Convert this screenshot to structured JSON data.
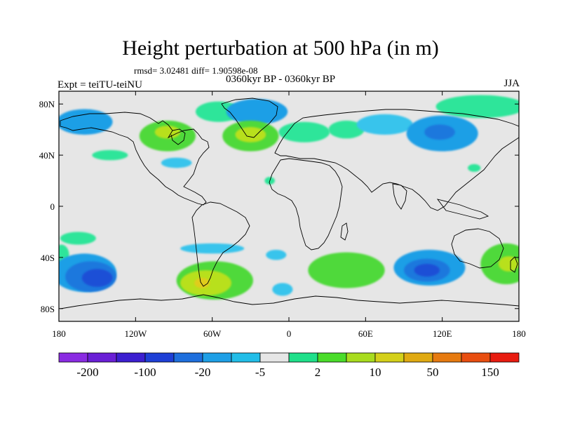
{
  "title": "Height perturbation at 500 hPa (in m)",
  "stats": "rmsd= 3.02481 diff= 1.90598e-08",
  "experiment": "Expt = teiTU-teiNU",
  "period": "0360kyr BP - 0360kyr BP",
  "season": "JJA",
  "map": {
    "lat_range": [
      -90,
      90
    ],
    "lon_range": [
      -180,
      180
    ],
    "background_color": "#e6e6e6",
    "lat_ticks": [
      {
        "value": 80,
        "label": "80N"
      },
      {
        "value": 40,
        "label": "40N"
      },
      {
        "value": 0,
        "label": "0"
      },
      {
        "value": -40,
        "label": "40S"
      },
      {
        "value": -80,
        "label": "80S"
      }
    ],
    "lon_ticks": [
      {
        "value": -180,
        "label": "180"
      },
      {
        "value": -120,
        "label": "120W"
      },
      {
        "value": -60,
        "label": "60W"
      },
      {
        "value": 0,
        "label": "0"
      },
      {
        "value": 60,
        "label": "60E"
      },
      {
        "value": 120,
        "label": "120E"
      },
      {
        "value": 180,
        "label": "180"
      }
    ],
    "anomalies": [
      {
        "lon": -160,
        "lat": 66,
        "rlon": 22,
        "rlat": 10,
        "level": 1,
        "sign": "neg"
      },
      {
        "lon": -140,
        "lat": 40,
        "rlon": 14,
        "rlat": 4,
        "level": 0,
        "sign": "pos"
      },
      {
        "lon": -95,
        "lat": 55,
        "rlon": 22,
        "rlat": 12,
        "level": 1,
        "sign": "pos"
      },
      {
        "lon": -95,
        "lat": 58,
        "rlon": 10,
        "rlat": 5,
        "level": 2,
        "sign": "pos"
      },
      {
        "lon": -88,
        "lat": 34,
        "rlon": 12,
        "rlat": 4,
        "level": 0,
        "sign": "neg"
      },
      {
        "lon": -55,
        "lat": 74,
        "rlon": 18,
        "rlat": 8,
        "level": 0,
        "sign": "pos"
      },
      {
        "lon": -25,
        "lat": 74,
        "rlon": 24,
        "rlat": 10,
        "level": 1,
        "sign": "neg"
      },
      {
        "lon": -30,
        "lat": 55,
        "rlon": 22,
        "rlat": 12,
        "level": 1,
        "sign": "pos"
      },
      {
        "lon": -30,
        "lat": 56,
        "rlon": 12,
        "rlat": 6,
        "level": 2,
        "sign": "pos"
      },
      {
        "lon": 12,
        "lat": 58,
        "rlon": 20,
        "rlat": 8,
        "level": 0,
        "sign": "pos"
      },
      {
        "lon": 45,
        "lat": 60,
        "rlon": 14,
        "rlat": 7,
        "level": 0,
        "sign": "pos"
      },
      {
        "lon": 75,
        "lat": 64,
        "rlon": 22,
        "rlat": 8,
        "level": 0,
        "sign": "neg"
      },
      {
        "lon": 120,
        "lat": 57,
        "rlon": 28,
        "rlat": 14,
        "level": 1,
        "sign": "neg"
      },
      {
        "lon": 118,
        "lat": 58,
        "rlon": 12,
        "rlat": 6,
        "level": 2,
        "sign": "neg"
      },
      {
        "lon": 150,
        "lat": 78,
        "rlon": 35,
        "rlat": 9,
        "level": 0,
        "sign": "pos"
      },
      {
        "lon": -15,
        "lat": 20,
        "rlon": 4,
        "rlat": 3,
        "level": 0,
        "sign": "pos"
      },
      {
        "lon": 145,
        "lat": 30,
        "rlon": 5,
        "rlat": 3,
        "level": 0,
        "sign": "pos"
      },
      {
        "lon": -160,
        "lat": -52,
        "rlon": 25,
        "rlat": 15,
        "level": 1,
        "sign": "neg"
      },
      {
        "lon": -155,
        "lat": -55,
        "rlon": 20,
        "rlat": 12,
        "level": 2,
        "sign": "neg"
      },
      {
        "lon": -150,
        "lat": -56,
        "rlon": 12,
        "rlat": 7,
        "level": 3,
        "sign": "neg"
      },
      {
        "lon": -165,
        "lat": -25,
        "rlon": 14,
        "rlat": 5,
        "level": 0,
        "sign": "pos"
      },
      {
        "lon": -178,
        "lat": -38,
        "rlon": 6,
        "rlat": 8,
        "level": 0,
        "sign": "pos"
      },
      {
        "lon": -58,
        "lat": -58,
        "rlon": 30,
        "rlat": 15,
        "level": 1,
        "sign": "pos"
      },
      {
        "lon": -65,
        "lat": -60,
        "rlon": 20,
        "rlat": 10,
        "level": 2,
        "sign": "pos"
      },
      {
        "lon": -68,
        "lat": -60,
        "rlon": 6,
        "rlat": 4,
        "level": 3,
        "sign": "pos"
      },
      {
        "lon": -60,
        "lat": -33,
        "rlon": 25,
        "rlat": 4,
        "level": 0,
        "sign": "neg"
      },
      {
        "lon": -10,
        "lat": -38,
        "rlon": 8,
        "rlat": 4,
        "level": 0,
        "sign": "neg"
      },
      {
        "lon": -5,
        "lat": -65,
        "rlon": 8,
        "rlat": 5,
        "level": 0,
        "sign": "neg"
      },
      {
        "lon": 45,
        "lat": -50,
        "rlon": 30,
        "rlat": 14,
        "level": 1,
        "sign": "pos"
      },
      {
        "lon": 110,
        "lat": -48,
        "rlon": 28,
        "rlat": 14,
        "level": 1,
        "sign": "neg"
      },
      {
        "lon": 108,
        "lat": -50,
        "rlon": 18,
        "rlat": 9,
        "level": 2,
        "sign": "neg"
      },
      {
        "lon": 108,
        "lat": -50,
        "rlon": 10,
        "rlat": 5,
        "level": 3,
        "sign": "neg"
      },
      {
        "lon": 170,
        "lat": -45,
        "rlon": 20,
        "rlat": 16,
        "level": 1,
        "sign": "pos"
      },
      {
        "lon": 172,
        "lat": -45,
        "rlon": 8,
        "rlat": 6,
        "level": 2,
        "sign": "pos"
      }
    ]
  },
  "colorbar": {
    "colors": [
      "#8a2be2",
      "#6a1fd6",
      "#3c1fd0",
      "#1e3fd6",
      "#1e6fdd",
      "#1e9fe6",
      "#22bde8",
      "#e6e6e6",
      "#1fe08a",
      "#4adc2a",
      "#a8dc1e",
      "#d4d01a",
      "#e0aa12",
      "#e67a10",
      "#e84e10",
      "#e81c10"
    ],
    "labels": [
      {
        "boundary": 1,
        "text": "-200"
      },
      {
        "boundary": 3,
        "text": "-100"
      },
      {
        "boundary": 5,
        "text": "-20"
      },
      {
        "boundary": 7,
        "text": "-5"
      },
      {
        "boundary": 9,
        "text": "2"
      },
      {
        "boundary": 11,
        "text": "10"
      },
      {
        "boundary": 13,
        "text": "50"
      },
      {
        "boundary": 15,
        "text": "150"
      }
    ]
  },
  "colors": {
    "pos_levels": [
      "#2ee59a",
      "#4fd93a",
      "#b8e01e",
      "#e0cc1a"
    ],
    "neg_levels": [
      "#38c4ec",
      "#1e9fe6",
      "#1e78dd",
      "#1e4fd6"
    ]
  }
}
